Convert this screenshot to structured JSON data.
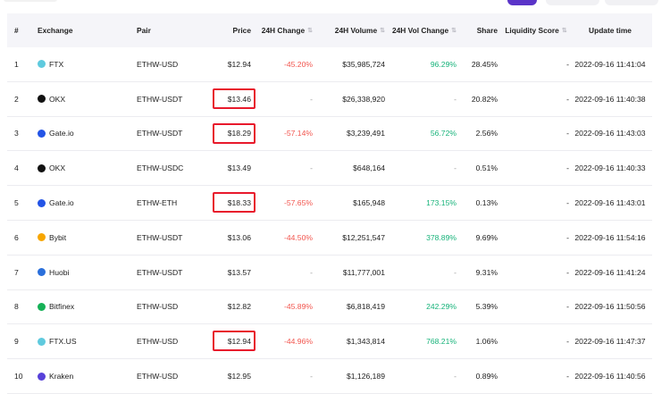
{
  "header": {
    "num": "#",
    "exchange": "Exchange",
    "pair": "Pair",
    "price": "Price",
    "change_24h": "24H Change",
    "volume_24h": "24H Volume",
    "vol_change_24h": "24H Vol Change",
    "share": "Share",
    "liquidity": "Liquidity Score",
    "update_time": "Update time",
    "sort_glyph": "⇅"
  },
  "rows": [
    {
      "num": "1",
      "exchange": "FTX",
      "icon": "ftx-icon",
      "icon_color": "#5fcade",
      "pair": "ETHW-USD",
      "price": "$12.94",
      "change": "-45.20%",
      "change_dir": "down",
      "volume": "$35,985,724",
      "vol_change": "96.29%",
      "vol_dir": "up",
      "share": "28.45%",
      "liquidity": "-",
      "update": "2022-09-16 11:41:04",
      "highlight": false
    },
    {
      "num": "2",
      "exchange": "OKX",
      "icon": "okx-icon",
      "icon_color": "#111111",
      "pair": "ETHW-USDT",
      "price": "$13.46",
      "change": "-",
      "change_dir": "none",
      "volume": "$26,338,920",
      "vol_change": "-",
      "vol_dir": "none",
      "share": "20.82%",
      "liquidity": "-",
      "update": "2022-09-16 11:40:38",
      "highlight": true
    },
    {
      "num": "3",
      "exchange": "Gate.io",
      "icon": "gateio-icon",
      "icon_color": "#2354e6",
      "pair": "ETHW-USDT",
      "price": "$18.29",
      "change": "-57.14%",
      "change_dir": "down",
      "volume": "$3,239,491",
      "vol_change": "56.72%",
      "vol_dir": "up",
      "share": "2.56%",
      "liquidity": "-",
      "update": "2022-09-16 11:43:03",
      "highlight": true
    },
    {
      "num": "4",
      "exchange": "OKX",
      "icon": "okx-icon",
      "icon_color": "#111111",
      "pair": "ETHW-USDC",
      "price": "$13.49",
      "change": "-",
      "change_dir": "none",
      "volume": "$648,164",
      "vol_change": "-",
      "vol_dir": "none",
      "share": "0.51%",
      "liquidity": "-",
      "update": "2022-09-16 11:40:33",
      "highlight": false
    },
    {
      "num": "5",
      "exchange": "Gate.io",
      "icon": "gateio-icon",
      "icon_color": "#2354e6",
      "pair": "ETHW-ETH",
      "price": "$18.33",
      "change": "-57.65%",
      "change_dir": "down",
      "volume": "$165,948",
      "vol_change": "173.15%",
      "vol_dir": "up",
      "share": "0.13%",
      "liquidity": "-",
      "update": "2022-09-16 11:43:01",
      "highlight": true
    },
    {
      "num": "6",
      "exchange": "Bybit",
      "icon": "bybit-icon",
      "icon_color": "#f7a600",
      "pair": "ETHW-USDT",
      "price": "$13.06",
      "change": "-44.50%",
      "change_dir": "down",
      "volume": "$12,251,547",
      "vol_change": "378.89%",
      "vol_dir": "up",
      "share": "9.69%",
      "liquidity": "-",
      "update": "2022-09-16 11:54:16",
      "highlight": false
    },
    {
      "num": "7",
      "exchange": "Huobi",
      "icon": "huobi-icon",
      "icon_color": "#2a6fdb",
      "pair": "ETHW-USDT",
      "price": "$13.57",
      "change": "-",
      "change_dir": "none",
      "volume": "$11,777,001",
      "vol_change": "-",
      "vol_dir": "none",
      "share": "9.31%",
      "liquidity": "-",
      "update": "2022-09-16 11:41:24",
      "highlight": false
    },
    {
      "num": "8",
      "exchange": "Bitfinex",
      "icon": "bitfinex-icon",
      "icon_color": "#16b157",
      "pair": "ETHW-USD",
      "price": "$12.82",
      "change": "-45.89%",
      "change_dir": "down",
      "volume": "$6,818,419",
      "vol_change": "242.29%",
      "vol_dir": "up",
      "share": "5.39%",
      "liquidity": "-",
      "update": "2022-09-16 11:50:56",
      "highlight": false
    },
    {
      "num": "9",
      "exchange": "FTX.US",
      "icon": "ftxus-icon",
      "icon_color": "#5fcade",
      "pair": "ETHW-USD",
      "price": "$12.94",
      "change": "-44.96%",
      "change_dir": "down",
      "volume": "$1,343,814",
      "vol_change": "768.21%",
      "vol_dir": "up",
      "share": "1.06%",
      "liquidity": "-",
      "update": "2022-09-16 11:47:37",
      "highlight": true
    },
    {
      "num": "10",
      "exchange": "Kraken",
      "icon": "kraken-icon",
      "icon_color": "#5741d9",
      "pair": "ETHW-USD",
      "price": "$12.95",
      "change": "-",
      "change_dir": "none",
      "volume": "$1,126,189",
      "vol_change": "-",
      "vol_dir": "none",
      "share": "0.89%",
      "liquidity": "-",
      "update": "2022-09-16 11:40:56",
      "highlight": false
    }
  ],
  "colors": {
    "down": "#f2564f",
    "up": "#17b37a",
    "highlight": "#e8192c",
    "accent": "#5a34c8"
  }
}
